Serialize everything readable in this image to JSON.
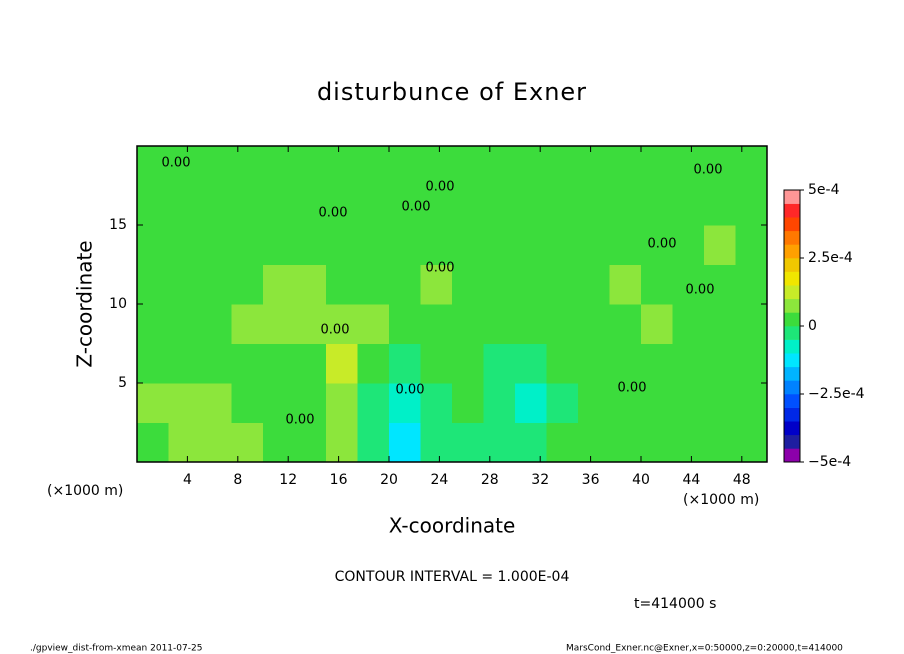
{
  "chart_data": {
    "type": "contour",
    "title": "disturbunce of Exner",
    "x_label": "X-coordinate",
    "y_label": "Z-coordinate",
    "x_unit": "(×1000 m)",
    "xlim": [
      0,
      50
    ],
    "ylim": [
      0,
      20
    ],
    "xticks": [
      4,
      8,
      12,
      16,
      20,
      24,
      28,
      32,
      36,
      40,
      44,
      48
    ],
    "yticks": [
      5,
      10,
      15
    ],
    "x": [
      0,
      2.5,
      5,
      7.5,
      10,
      12.5,
      15,
      17.5,
      20,
      22.5,
      25,
      27.5,
      30,
      32.5,
      35,
      37.5,
      40,
      42.5,
      45,
      47.5,
      50
    ],
    "z": [
      0,
      2.5,
      5,
      7.5,
      10,
      12.5,
      15,
      17.5,
      20
    ],
    "values": [
      [
        4e-05,
        5e-05,
        6e-05,
        5e-05,
        3e-05,
        2e-05,
        8e-05,
        -3e-05,
        -0.00012,
        -5e-05,
        -2e-05,
        -5e-05,
        -3e-05,
        1e-05,
        3e-05,
        4e-05,
        3e-05,
        2e-05,
        3e-05,
        2e-05
      ],
      [
        5e-05,
        6e-05,
        8e-05,
        2e-05,
        3e-05,
        4e-05,
        7e-05,
        -4e-05,
        -0.0001,
        -3e-05,
        1e-05,
        -4e-05,
        -6e-05,
        -2e-05,
        2e-05,
        3e-05,
        3e-05,
        2e-05,
        3e-05,
        3e-05
      ],
      [
        3e-05,
        4e-05,
        2e-05,
        4e-05,
        2e-05,
        3e-05,
        0.00013,
        3e-05,
        -2e-05,
        1e-05,
        3e-05,
        -2e-05,
        -3e-05,
        1e-05,
        2e-05,
        2e-05,
        3e-05,
        2e-05,
        3e-05,
        2e-05
      ],
      [
        2e-05,
        3e-05,
        2e-05,
        5e-05,
        6e-05,
        6e-05,
        7e-05,
        6e-05,
        3e-05,
        2e-05,
        2e-05,
        3e-05,
        2e-05,
        3e-05,
        2e-05,
        2e-05,
        6e-05,
        3e-05,
        2e-05,
        3e-05
      ],
      [
        3e-05,
        2e-05,
        3e-05,
        3e-05,
        6e-05,
        6e-05,
        3e-05,
        2e-05,
        3e-05,
        6e-05,
        3e-05,
        2e-05,
        3e-05,
        2e-05,
        3e-05,
        6e-05,
        3e-05,
        2e-05,
        3e-05,
        2e-05
      ],
      [
        2e-05,
        3e-05,
        2e-05,
        3e-05,
        2e-05,
        3e-05,
        2e-05,
        3e-05,
        2e-05,
        3e-05,
        2e-05,
        3e-05,
        2e-05,
        3e-05,
        2e-05,
        3e-05,
        2e-05,
        3e-05,
        6e-05,
        3e-05
      ],
      [
        3e-05,
        2e-05,
        3e-05,
        2e-05,
        3e-05,
        2e-05,
        3e-05,
        2e-05,
        3e-05,
        2e-05,
        3e-05,
        2e-05,
        3e-05,
        2e-05,
        3e-05,
        2e-05,
        3e-05,
        2e-05,
        3e-05,
        2e-05
      ],
      [
        2e-05,
        3e-05,
        2e-05,
        3e-05,
        2e-05,
        3e-05,
        2e-05,
        3e-05,
        2e-05,
        3e-05,
        2e-05,
        3e-05,
        2e-05,
        3e-05,
        2e-05,
        3e-05,
        2e-05,
        3e-05,
        2e-05,
        3e-05
      ]
    ],
    "contour_label": "0.00",
    "clim": [
      -0.0005,
      0.0005
    ],
    "colors": [
      "#8c00aa",
      "#1e1ea0",
      "#0000c8",
      "#0028e6",
      "#0050ff",
      "#0082ff",
      "#00b4ff",
      "#00e6ff",
      "#00f0c8",
      "#1ee678",
      "#3cdc3c",
      "#8ce63c",
      "#c8eb28",
      "#f0e600",
      "#f0c800",
      "#ffa000",
      "#ff7800",
      "#ff4600",
      "#ff2828",
      "#ff9696"
    ],
    "cticks": [
      {
        "value": -0.0005,
        "label": "−5e-4"
      },
      {
        "value": -0.00025,
        "label": "−2.5e-4"
      },
      0,
      {
        "value": 0.00025,
        "label": "2.5e-4"
      },
      {
        "value": 0.0005,
        "label": "5e-4"
      }
    ],
    "contour_interval": "CONTOUR INTERVAL = 1.000E-04",
    "time_label": "t=414000 s",
    "footer_left": "./gpview_dist-from-xmean  2011-07-25",
    "footer_right": "MarsCond_Exner.nc@Exner,x=0:50000,z=0:20000,t=414000"
  }
}
